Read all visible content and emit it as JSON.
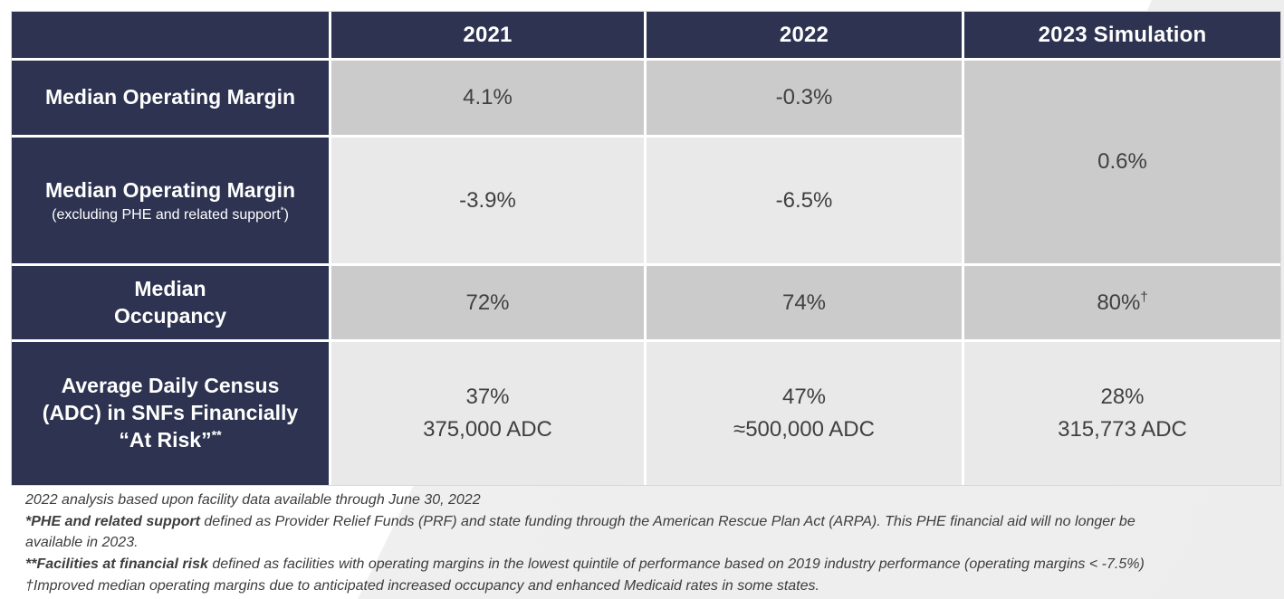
{
  "colors": {
    "header_navy": "#2d3350",
    "cell_dark_gray": "#cbcbcb",
    "cell_light_gray": "#e9e9e9",
    "value_text": "#404040",
    "accent_gray": "#efefef"
  },
  "table": {
    "header": [
      "",
      "2021",
      "2022",
      "2023 Simulation"
    ],
    "rows": {
      "operating_margin": {
        "label": "Median Operating Margin",
        "y2021": "4.1%",
        "y2022": "-0.3%"
      },
      "operating_margin_excl": {
        "label_main": "Median Operating Margin",
        "sub_prefix": "(excluding PHE and related support",
        "sub_sup": "*",
        "sub_close": ")",
        "y2021": "-3.9%",
        "y2022": "-6.5%"
      },
      "simulation_merged": {
        "value": "0.6%"
      },
      "occupancy": {
        "label_line1": "Median",
        "label_line2": "Occupancy",
        "y2021": "72%",
        "y2022": "74%",
        "y2023": "80%",
        "y2023_sup": "†"
      },
      "adc": {
        "label_line1": "Average Daily Census",
        "label_line2": "(ADC) in SNFs Financially",
        "label_line3": "“At Risk”",
        "label_sup": "**",
        "y2021_pct": "37%",
        "y2021_adc": "375,000 ADC",
        "y2022_pct": "47%",
        "y2022_adc": "≈500,000 ADC",
        "y2023_pct": "28%",
        "y2023_adc": "315,773 ADC"
      }
    }
  },
  "footnotes": {
    "lines": [
      {
        "bold": "",
        "text": "2022 analysis based upon facility data available through June 30, 2022"
      },
      {
        "bold": "*PHE and related support",
        "text": " defined as Provider Relief Funds (PRF) and state funding through the American Rescue Plan Act (ARPA). This PHE financial aid will no longer be"
      },
      {
        "bold": "",
        "text": "available in 2023."
      },
      {
        "bold": "**Facilities at financial risk",
        "text": " defined as facilities with operating margins in the lowest quintile of performance based on 2019 industry performance (operating margins < -7.5%)"
      },
      {
        "bold": "",
        "text": "†Improved median operating margins due to anticipated increased occupancy and enhanced Medicaid rates in some states."
      }
    ]
  }
}
